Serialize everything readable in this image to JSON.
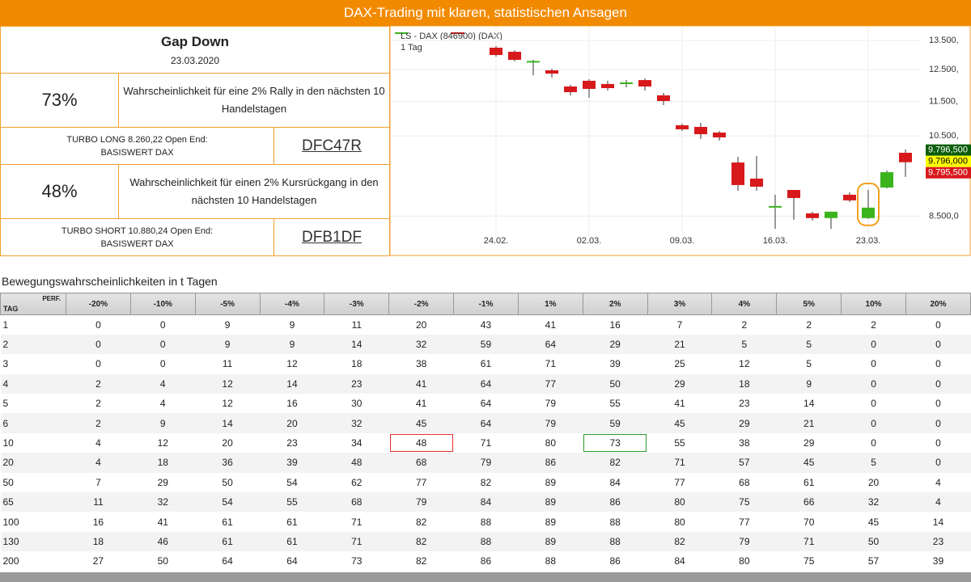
{
  "header": {
    "title": "DAX-Trading mit klaren, statistischen Ansagen"
  },
  "summary": {
    "title": "Gap Down",
    "date": "23.03.2020"
  },
  "signals": [
    {
      "probability": "73%",
      "text": "Wahrscheinlichkeit für eine 2% Rally in den nächsten 10 Handelstagen",
      "product": "TURBO LONG 8.260,22 Open End:",
      "underlying": "BASISWERT DAX",
      "code": "DFC47R"
    },
    {
      "probability": "48%",
      "text": "Wahrscheinlichkeit für einen 2% Kursrückgang in den nächsten 10 Handelstagen",
      "product": "TURBO SHORT 10.880,24 Open End:",
      "underlying": "BASISWERT DAX",
      "code": "DFB1DF"
    }
  ],
  "chart_data": {
    "type": "candlestick",
    "title": "LS - DAX (846900) (DAX)",
    "subtitle": "1 Tag",
    "categories": [
      "24.02.",
      null,
      null,
      null,
      null,
      "02.03.",
      null,
      null,
      null,
      null,
      "09.03.",
      null,
      null,
      null,
      null,
      "16.03.",
      null,
      null,
      null,
      null,
      "23.03.",
      null,
      null
    ],
    "open": [
      13244,
      13103,
      12760,
      12478,
      11958,
      12139,
      12037,
      12037,
      12162,
      11682,
      10799,
      10751,
      10592,
      9789,
      9383,
      8710,
      9106,
      8561,
      8456,
      8992,
      8456,
      9164,
      10043
    ],
    "high": [
      13300,
      13160,
      12828,
      12531,
      12011,
      12189,
      12139,
      12162,
      12215,
      11756,
      10843,
      10866,
      10638,
      9940,
      9958,
      8992,
      9106,
      8600,
      8600,
      9050,
      9106,
      9585,
      10130
    ],
    "low": [
      12937,
      12774,
      12319,
      12242,
      11682,
      11609,
      11830,
      11933,
      11830,
      11387,
      10638,
      10415,
      10372,
      9087,
      9087,
      8222,
      8420,
      8402,
      8222,
      8822,
      8438,
      9146,
      9423
    ],
    "close": [
      12992,
      12828,
      12790,
      12371,
      11781,
      11883,
      11907,
      12087,
      11958,
      11509,
      10683,
      10546,
      10458,
      9225,
      9185,
      8729,
      8915,
      8456,
      8600,
      8860,
      8692,
      9542,
      9796
    ],
    "colors": {
      "up": "#3cb41e",
      "down": "#d7191c"
    },
    "log": true,
    "grid": true,
    "ylim": [
      8100,
      13850
    ],
    "yticks": [
      {
        "value": 8500,
        "label": "8.500,0"
      },
      {
        "value": 10500,
        "label": "10.500,"
      },
      {
        "value": 11500,
        "label": "11.500,"
      },
      {
        "value": 12500,
        "label": "12.500,"
      },
      {
        "value": 13500,
        "label": "13.500,"
      }
    ],
    "price_tags": [
      {
        "value": 9796.5,
        "label": "9.796,500",
        "color": "#0b5d0b"
      },
      {
        "value": 9796,
        "label": "9.796,000",
        "color": "#ffff00"
      },
      {
        "value": 9795.5,
        "label": "9.795,500",
        "color": "#d7191c"
      }
    ]
  },
  "table": {
    "title": "Bewegungswahrscheinlichkeiten in t Tagen",
    "corner_top": "PERF.",
    "corner_bottom": "TAG",
    "columns": [
      "-20%",
      "-10%",
      "-5%",
      "-4%",
      "-3%",
      "-2%",
      "-1%",
      "1%",
      "2%",
      "3%",
      "4%",
      "5%",
      "10%",
      "20%"
    ],
    "rows": [
      [
        1,
        0,
        0,
        9,
        9,
        11,
        20,
        43,
        41,
        16,
        7,
        2,
        2,
        2,
        0
      ],
      [
        2,
        0,
        0,
        9,
        9,
        14,
        32,
        59,
        64,
        29,
        21,
        5,
        5,
        0,
        0
      ],
      [
        3,
        0,
        0,
        11,
        12,
        18,
        38,
        61,
        71,
        39,
        25,
        12,
        5,
        0,
        0
      ],
      [
        4,
        2,
        4,
        12,
        14,
        23,
        41,
        64,
        77,
        50,
        29,
        18,
        9,
        0,
        0
      ],
      [
        5,
        2,
        4,
        12,
        16,
        30,
        41,
        64,
        79,
        55,
        41,
        23,
        14,
        0,
        0
      ],
      [
        6,
        2,
        9,
        14,
        20,
        32,
        45,
        64,
        79,
        59,
        45,
        29,
        21,
        0,
        0
      ],
      [
        10,
        4,
        12,
        20,
        23,
        34,
        48,
        71,
        80,
        73,
        55,
        38,
        29,
        0,
        0
      ],
      [
        20,
        4,
        18,
        36,
        39,
        48,
        68,
        79,
        86,
        82,
        71,
        57,
        45,
        5,
        0
      ],
      [
        50,
        7,
        29,
        50,
        54,
        62,
        77,
        82,
        89,
        84,
        77,
        68,
        61,
        20,
        4
      ],
      [
        65,
        11,
        32,
        54,
        55,
        68,
        79,
        84,
        89,
        86,
        80,
        75,
        66,
        32,
        4
      ],
      [
        100,
        16,
        41,
        61,
        61,
        71,
        82,
        88,
        89,
        88,
        80,
        77,
        70,
        45,
        14
      ],
      [
        130,
        18,
        46,
        61,
        61,
        71,
        82,
        88,
        89,
        88,
        82,
        79,
        71,
        50,
        23
      ],
      [
        200,
        27,
        50,
        64,
        64,
        73,
        82,
        86,
        88,
        86,
        84,
        80,
        75,
        57,
        39
      ]
    ]
  }
}
